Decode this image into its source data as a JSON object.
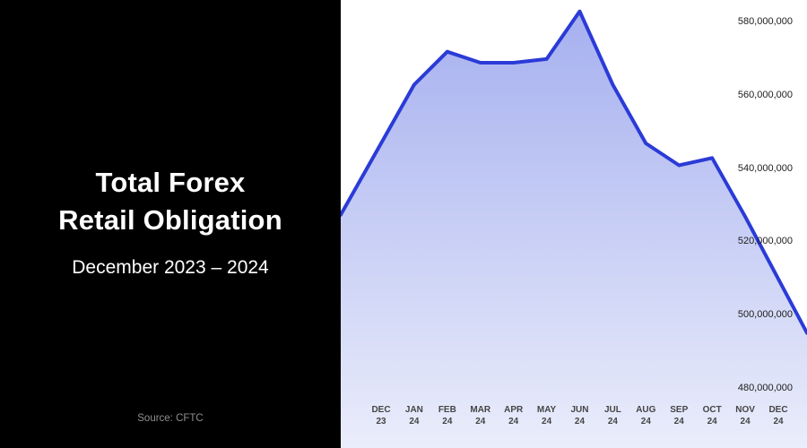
{
  "panel": {
    "title_line1": "Total Forex",
    "title_line2": "Retail Obligation",
    "subtitle": "December 2023 – 2024",
    "source": "Source: CFTC"
  },
  "chart_data": {
    "type": "area",
    "title": "Total Forex Retail Obligation",
    "subtitle": "December 2023 – 2024",
    "source": "Source: CFTC",
    "x_tick_labels": [
      {
        "month": "DEC",
        "year": "23"
      },
      {
        "month": "JAN",
        "year": "24"
      },
      {
        "month": "FEB",
        "year": "24"
      },
      {
        "month": "MAR",
        "year": "24"
      },
      {
        "month": "APR",
        "year": "24"
      },
      {
        "month": "MAY",
        "year": "24"
      },
      {
        "month": "JUN",
        "year": "24"
      },
      {
        "month": "JUL",
        "year": "24"
      },
      {
        "month": "AUG",
        "year": "24"
      },
      {
        "month": "SEP",
        "year": "24"
      },
      {
        "month": "OCT",
        "year": "24"
      },
      {
        "month": "NOV",
        "year": "24"
      },
      {
        "month": "DEC",
        "year": "24"
      }
    ],
    "values": [
      547000000,
      563000000,
      572000000,
      569000000,
      569000000,
      570000000,
      583000000,
      563000000,
      547000000,
      541000000,
      543000000,
      527000000,
      510000000
    ],
    "y_ticks": [
      580000000,
      560000000,
      540000000,
      520000000,
      500000000,
      480000000
    ],
    "ylim": [
      480000000,
      585000000
    ],
    "grid": false,
    "legend": false,
    "colors": {
      "line": "#2b3bd7",
      "fill_top": "#a6b0ef",
      "fill_bottom": "#eaedfb",
      "panel_bg": "#000000",
      "chart_bg": "#ffffff",
      "axis_text": "#1c1c1c",
      "x_tick_text": "#454545",
      "source_text": "#8f8f8f"
    }
  }
}
